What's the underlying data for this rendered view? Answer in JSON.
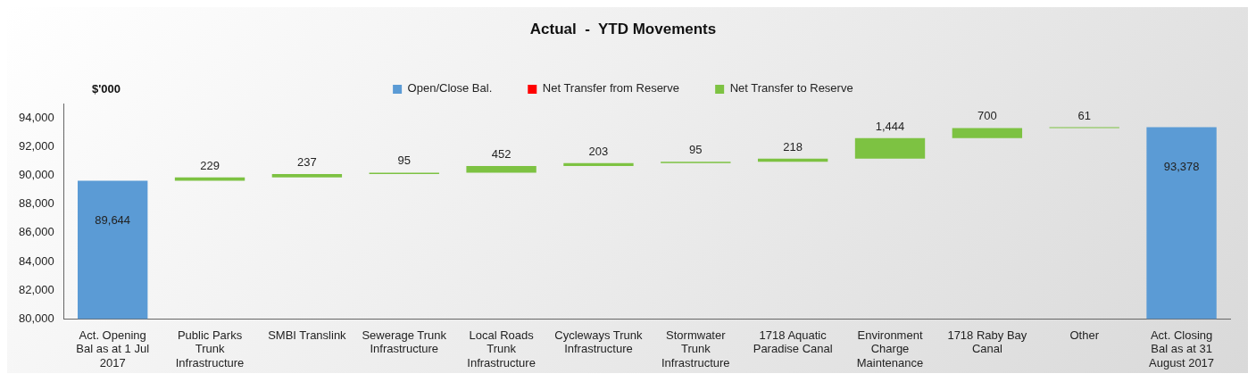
{
  "chart_data": {
    "type": "bar",
    "title": "Actual  -  YTD Movements",
    "ylabel": "$'000",
    "categories": [
      "Act. Opening Bal as at 1 Jul 2017",
      "Public Parks Trunk Infrastructure",
      "SMBI Translink",
      "Sewerage Trunk Infrastructure",
      "Local Roads Trunk Infrastructure",
      "Cycleways Trunk Infrastructure",
      "Stormwater Trunk Infrastructure",
      "1718 Aquatic Paradise Canal",
      "Environment Charge Maintenance",
      "1718 Raby Bay Canal",
      "Other",
      "Act. Closing Bal as at 31 August 2017"
    ],
    "series": [
      {
        "name": "Open/Close Bal.",
        "color": "#5b9bd5",
        "values": [
          89644,
          null,
          null,
          null,
          null,
          null,
          null,
          null,
          null,
          null,
          null,
          93378
        ],
        "value_labels": [
          "89,644",
          null,
          null,
          null,
          null,
          null,
          null,
          null,
          null,
          null,
          null,
          "93,378"
        ]
      },
      {
        "name": "Net Transfer from Reserve",
        "color": "#ff0000",
        "values": [
          null,
          null,
          null,
          null,
          null,
          null,
          null,
          null,
          null,
          null,
          null,
          null
        ]
      },
      {
        "name": "Net Transfer to Reserve",
        "color": "#7dc242",
        "values": [
          null,
          229,
          237,
          95,
          452,
          203,
          95,
          218,
          1444,
          700,
          61,
          null
        ],
        "value_labels": [
          null,
          "229",
          "237",
          "95",
          "452",
          "203",
          "95",
          "218",
          "1,444",
          "700",
          "61",
          null
        ],
        "base": [
          null,
          89644,
          89873,
          90110,
          90205,
          90657,
          90860,
          90955,
          91173,
          92617,
          93317,
          null
        ]
      }
    ],
    "ylim": [
      80000,
      95000
    ],
    "yticks": [
      {
        "value": 80000,
        "label": "80,000"
      },
      {
        "value": 82000,
        "label": "82,000"
      },
      {
        "value": 84000,
        "label": "84,000"
      },
      {
        "value": 86000,
        "label": "86,000"
      },
      {
        "value": 88000,
        "label": "88,000"
      },
      {
        "value": 90000,
        "label": "90,000"
      },
      {
        "value": 92000,
        "label": "92,000"
      },
      {
        "value": 94000,
        "label": "94,000"
      }
    ],
    "grid": false,
    "legend": "top"
  }
}
